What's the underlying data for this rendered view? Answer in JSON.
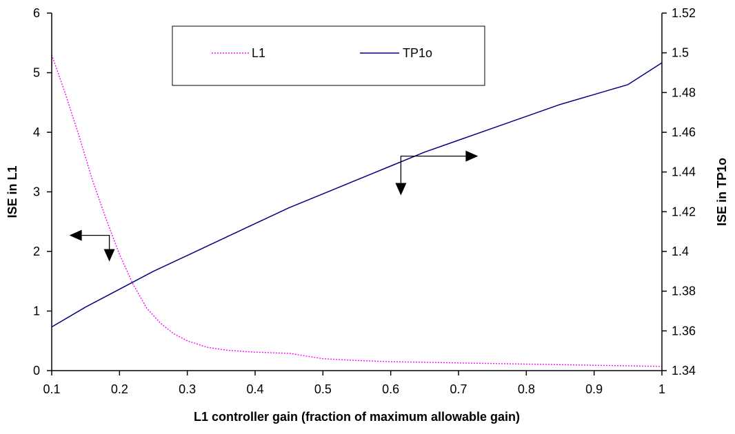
{
  "chart_data": {
    "type": "line",
    "title": "",
    "xlabel": "L1 controller gain (fraction of maximum allowable gain)",
    "ylabel_left": "ISE in L1",
    "ylabel_right": "ISE in TP1o",
    "xlim": [
      0.1,
      1
    ],
    "ylim_left": [
      0,
      6
    ],
    "ylim_right": [
      1.34,
      1.52
    ],
    "xticks": [
      "0.1",
      "0.2",
      "0.3",
      "0.4",
      "0.5",
      "0.6",
      "0.7",
      "0.8",
      "0.9",
      "1"
    ],
    "yticks_left": [
      "0",
      "1",
      "2",
      "3",
      "4",
      "5",
      "6"
    ],
    "yticks_right": [
      "1.34",
      "1.36",
      "1.38",
      "1.4",
      "1.42",
      "1.44",
      "1.46",
      "1.48",
      "1.5",
      "1.52"
    ],
    "grid": false,
    "legend": {
      "placement": "top-center"
    },
    "series": [
      {
        "name": "L1",
        "axis": "left",
        "color": "#ff00ff",
        "style": "dotted",
        "x": [
          0.1,
          0.12,
          0.14,
          0.16,
          0.18,
          0.2,
          0.22,
          0.24,
          0.26,
          0.28,
          0.3,
          0.33,
          0.36,
          0.4,
          0.45,
          0.5,
          0.55,
          0.6,
          0.7,
          0.8,
          0.9,
          1.0
        ],
        "y": [
          5.3,
          4.65,
          3.95,
          3.2,
          2.55,
          1.95,
          1.45,
          1.05,
          0.8,
          0.62,
          0.5,
          0.39,
          0.34,
          0.31,
          0.29,
          0.2,
          0.17,
          0.15,
          0.13,
          0.11,
          0.09,
          0.07
        ]
      },
      {
        "name": "TP1o",
        "axis": "right",
        "color": "#000080",
        "style": "solid",
        "x": [
          0.1,
          0.15,
          0.2,
          0.25,
          0.3,
          0.35,
          0.4,
          0.45,
          0.5,
          0.55,
          0.6,
          0.65,
          0.7,
          0.75,
          0.8,
          0.85,
          0.9,
          0.95,
          1.0
        ],
        "y": [
          1.362,
          1.372,
          1.381,
          1.39,
          1.398,
          1.406,
          1.414,
          1.422,
          1.429,
          1.436,
          1.443,
          1.45,
          1.456,
          1.462,
          1.468,
          1.474,
          1.479,
          1.484,
          1.495
        ]
      }
    ],
    "annotations": [
      {
        "type": "bracket-arrow",
        "target": "left-axis",
        "data_x": 0.185,
        "data_y": 2.27
      },
      {
        "type": "bracket-arrow",
        "target": "right-axis",
        "data_x": 0.615,
        "data_y_right": 1.448
      }
    ]
  }
}
